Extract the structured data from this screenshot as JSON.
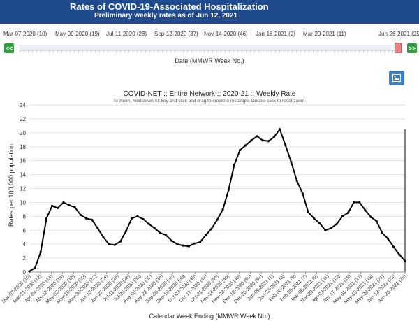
{
  "header": {
    "title": "Rates of COVID-19-Associated Hospitalization",
    "subtitle": "Preliminary weekly rates as of Jun 12, 2021"
  },
  "slider": {
    "date_labels": [
      "Mar-07-2020 (10)",
      "May-09-2020 (19)",
      "Jul-11-2020 (28)",
      "Sep-12-2020 (37)",
      "Nov-14-2020 (46)",
      "Jan-16-2021 (2)",
      "Mar-20-2021 (11)",
      "Jun-26-2021 (25)"
    ],
    "left_button": "<<",
    "right_button": ">>",
    "axis_label": "Date (MMWR Week No.)"
  },
  "toolbar": {
    "image_button_icon": "image-icon"
  },
  "chart_data": {
    "type": "line",
    "title": "COVID-NET :: Entire Network :: 2020-21 :: Weekly Rate",
    "subtitle": "To zoom, hold down Alt key and click and drag to create a rectangle. Double click to reset zoom.",
    "xlabel": "Calendar Week Ending (MMWR Week No.)",
    "ylabel": "Rates per 100,000 population",
    "ylim": [
      0,
      24
    ],
    "yticks": [
      0,
      2,
      4,
      6,
      8,
      10,
      12,
      14,
      16,
      18,
      20,
      22,
      24
    ],
    "grid": true,
    "x_tick_labels": [
      "Mar-07-2020 (10)",
      "Mar-21-2020 (12)",
      "Apr-04-2020 (14)",
      "Apr-18-2020 (16)",
      "May-02-2020 (18)",
      "May-16-2020 (20)",
      "May-30-2020 (22)",
      "Jun-13-2020 (24)",
      "Jun-27-2020 (26)",
      "Jul-11-2020 (28)",
      "Jul-25-2020 (30)",
      "Aug-08-2020 (32)",
      "Aug-22-2020 (34)",
      "Sep-05-2020 (36)",
      "Sep-19-2020 (38)",
      "Oct-03-2020 (40)",
      "Oct-17-2020 (42)",
      "Oct-31-2020 (44)",
      "Nov-14-2020 (46)",
      "Nov-28-2020 (48)",
      "Dec-12-2020 (50)",
      "Dec-26-2020 (52)",
      "Jan-09-2021 (1)",
      "Jan-23-2021 (3)",
      "Feb-06-2021 (5)",
      "Feb-20-2021 (7)",
      "Mar-06-2021 (9)",
      "Mar-20-2021 (11)",
      "Apr-03-2021 (13)",
      "Apr-17-2021 (15)",
      "May-01-2021 (17)",
      "May-15-2021 (19)",
      "May-29-2021 (21)",
      "Jun-12-2021 (23)",
      "Jun-26-2021 (25)"
    ],
    "series": [
      {
        "color": "#000000",
        "values": [
          0.1,
          0.6,
          2.9,
          7.7,
          9.5,
          9.2,
          10.0,
          9.6,
          9.3,
          8.2,
          7.7,
          7.5,
          6.3,
          5.0,
          4.0,
          3.9,
          4.4,
          5.9,
          7.7,
          8.0,
          7.6,
          6.9,
          6.3,
          5.6,
          5.3,
          4.5,
          4.0,
          3.8,
          3.7,
          4.1,
          4.3,
          5.3,
          6.2,
          7.5,
          9.0,
          11.8,
          15.4,
          17.5,
          18.2,
          18.9,
          19.5,
          18.9,
          18.8,
          19.4,
          20.5,
          18.2,
          15.8,
          13.1,
          11.3,
          8.6,
          7.7,
          7.0,
          6.0,
          6.3,
          6.9,
          8.0,
          8.5,
          10.0,
          10.0,
          8.9,
          7.9,
          7.3,
          5.6,
          4.8,
          3.6,
          2.5,
          1.6
        ]
      }
    ]
  }
}
